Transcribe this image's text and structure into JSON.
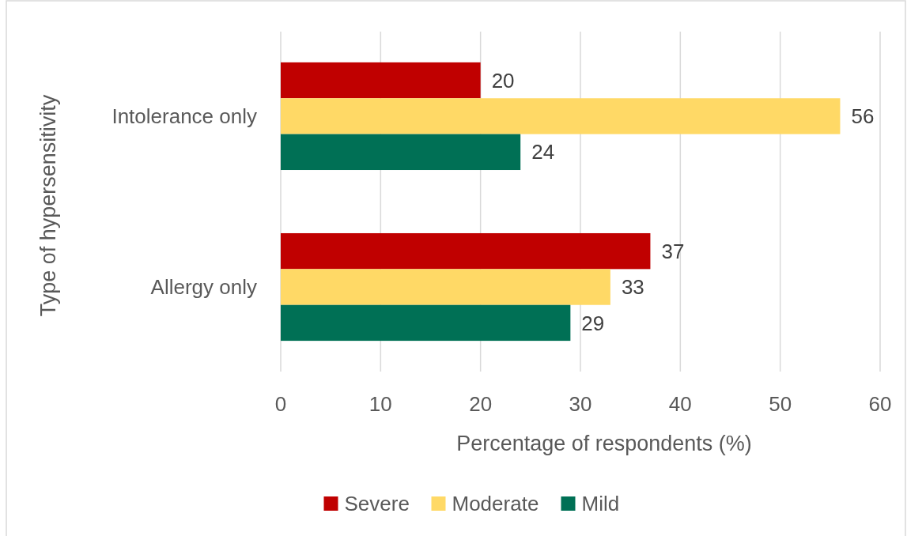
{
  "chart_data": {
    "type": "bar",
    "orientation": "horizontal",
    "xlabel": "Percentage of respondents (%)",
    "ylabel": "Type of hypersensitivity",
    "categories": [
      "Intolerance only",
      "Allergy only"
    ],
    "series": [
      {
        "name": "Severe",
        "color": "#c00000",
        "values": [
          20,
          37
        ]
      },
      {
        "name": "Moderate",
        "color": "#ffd966",
        "values": [
          56,
          33
        ]
      },
      {
        "name": "Mild",
        "color": "#007055",
        "values": [
          24,
          29
        ]
      }
    ],
    "xlim": [
      0,
      60
    ],
    "xticks": [
      0,
      10,
      20,
      30,
      40,
      50,
      60
    ],
    "grid": "x",
    "legend": "bottom",
    "data_labels": true
  }
}
